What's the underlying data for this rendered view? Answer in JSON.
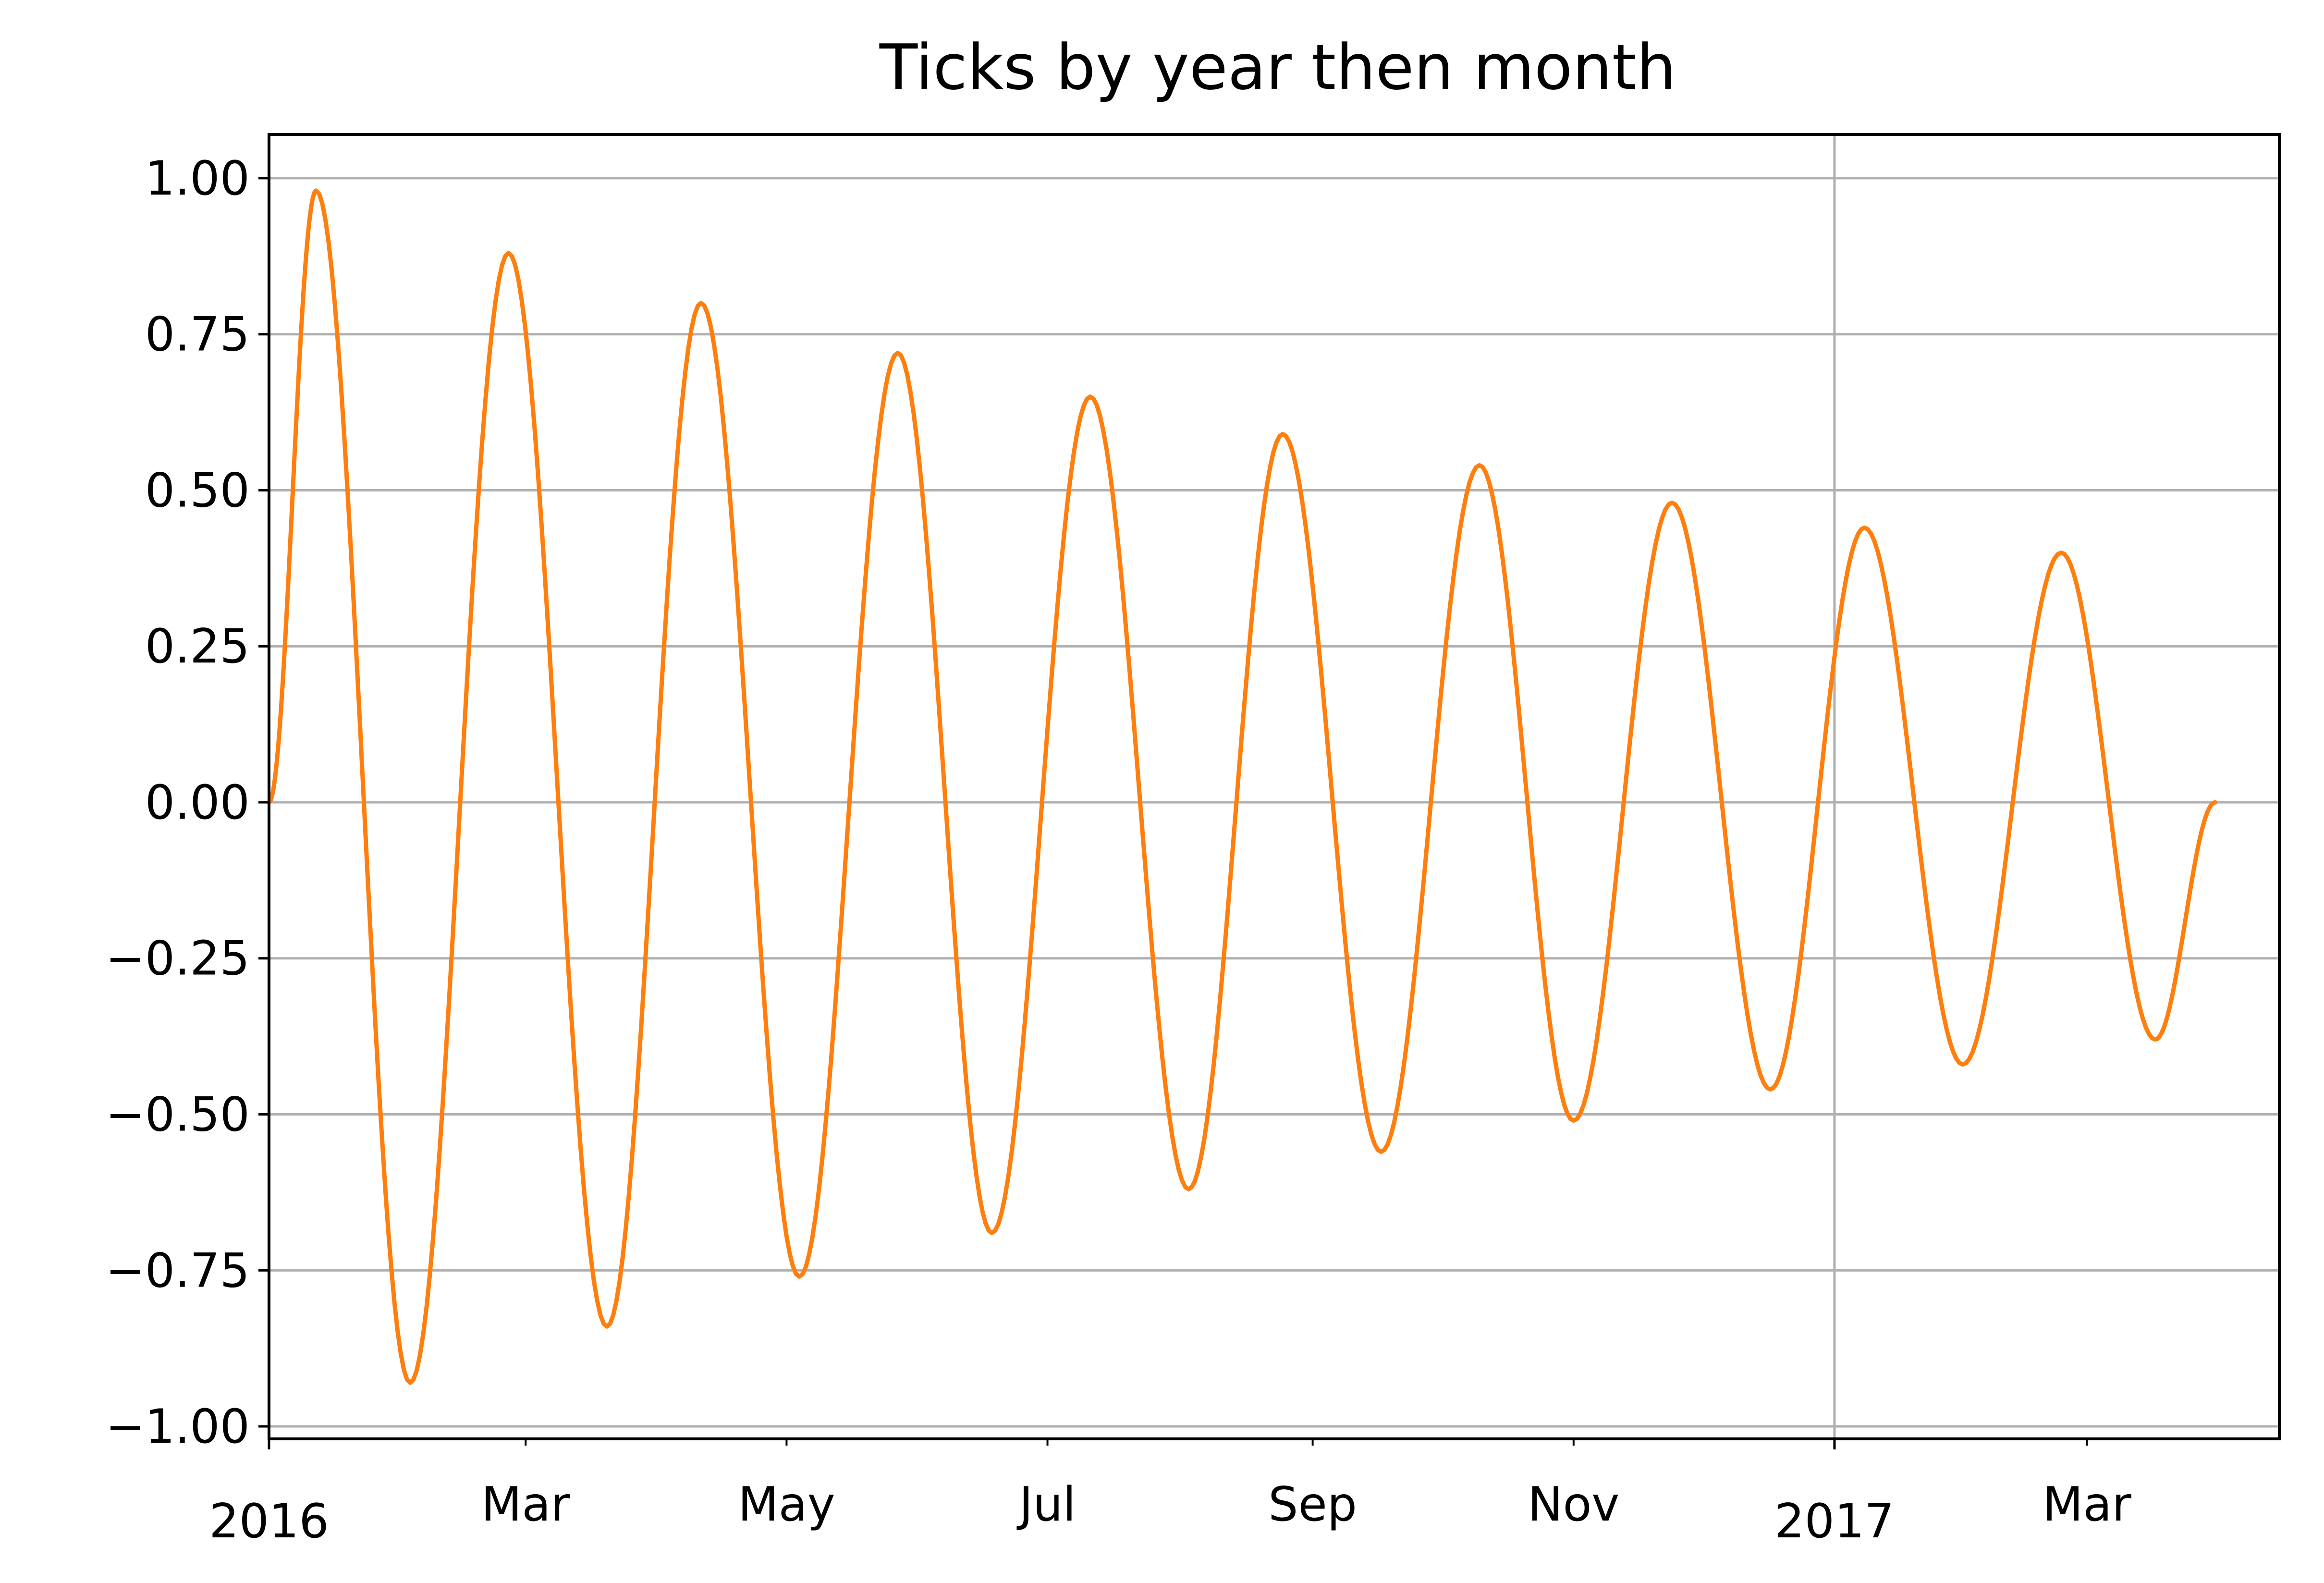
{
  "chart_data": {
    "type": "line",
    "title": "Ticks by year then month",
    "xlabel": "",
    "ylabel": "",
    "x_range": [
      "2016-01-01",
      "2017-04-15"
    ],
    "ylim": [
      -1.02,
      1.07
    ],
    "grid": true,
    "x_major_ticks": [
      {
        "date": "2016-01-01",
        "label": "2016"
      },
      {
        "date": "2017-01-01",
        "label": "2017"
      }
    ],
    "x_minor_ticks": [
      {
        "date": "2016-03-01",
        "label": "Mar"
      },
      {
        "date": "2016-05-01",
        "label": "May"
      },
      {
        "date": "2016-07-01",
        "label": "Jul"
      },
      {
        "date": "2016-09-01",
        "label": "Sep"
      },
      {
        "date": "2016-11-01",
        "label": "Nov"
      },
      {
        "date": "2017-03-01",
        "label": "Mar"
      }
    ],
    "y_ticks": [
      {
        "value": 1.0,
        "label": "1.00"
      },
      {
        "value": 0.75,
        "label": "0.75"
      },
      {
        "value": 0.5,
        "label": "0.50"
      },
      {
        "value": 0.25,
        "label": "0.25"
      },
      {
        "value": 0.0,
        "label": "0.00"
      },
      {
        "value": -0.25,
        "label": "−0.25"
      },
      {
        "value": -0.5,
        "label": "−0.50"
      },
      {
        "value": -0.75,
        "label": "−0.75"
      },
      {
        "value": -1.0,
        "label": "−1.00"
      }
    ],
    "series": [
      {
        "color": "#ff7f0e",
        "x": [
          "2016-01-01",
          "2016-01-12",
          "2016-02-03",
          "2016-02-26",
          "2016-03-20",
          "2016-04-11",
          "2016-05-04",
          "2016-05-27",
          "2016-06-18",
          "2016-07-11",
          "2016-08-03",
          "2016-08-25",
          "2016-09-17",
          "2016-10-10",
          "2016-11-01",
          "2016-11-24",
          "2016-12-17",
          "2017-01-08",
          "2017-01-31",
          "2017-02-23",
          "2017-03-17",
          "2017-03-31"
        ],
        "y": [
          0.0,
          0.98,
          -0.93,
          0.88,
          -0.84,
          0.8,
          -0.76,
          0.72,
          -0.69,
          0.65,
          -0.62,
          0.59,
          -0.56,
          0.54,
          -0.51,
          0.48,
          -0.46,
          0.44,
          -0.42,
          0.4,
          -0.38,
          0.0
        ]
      }
    ]
  }
}
